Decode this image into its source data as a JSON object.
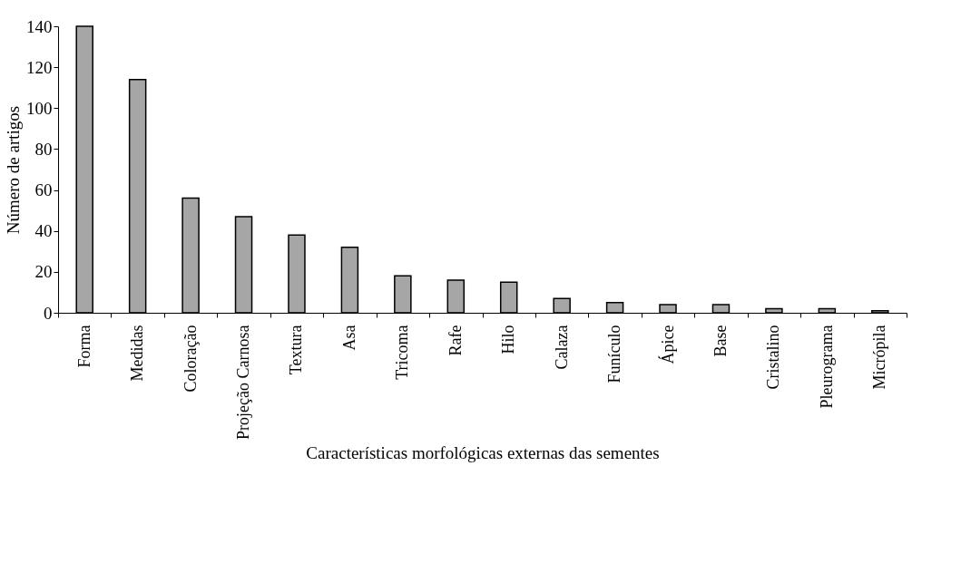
{
  "chart_data": {
    "type": "bar",
    "xlabel": "Características morfológicas externas das sementes",
    "ylabel": "Número de artigos",
    "categories": [
      "Forma",
      "Medidas",
      "Coloração",
      "Projeção Carnosa",
      "Textura",
      "Asa",
      "Tricoma",
      "Rafe",
      "Hilo",
      "Calaza",
      "Funículo",
      "Ápice",
      "Base",
      "Cristalino",
      "Pleurograma",
      "Micrópila"
    ],
    "values": [
      140,
      114,
      56,
      47,
      38,
      32,
      18,
      16,
      15,
      7,
      5,
      4,
      4,
      2,
      2,
      1
    ],
    "color": "#a6a6a6",
    "ylim": [
      0,
      140
    ],
    "yticks": [
      0,
      20,
      40,
      60,
      80,
      100,
      120,
      140
    ],
    "grid": false
  }
}
